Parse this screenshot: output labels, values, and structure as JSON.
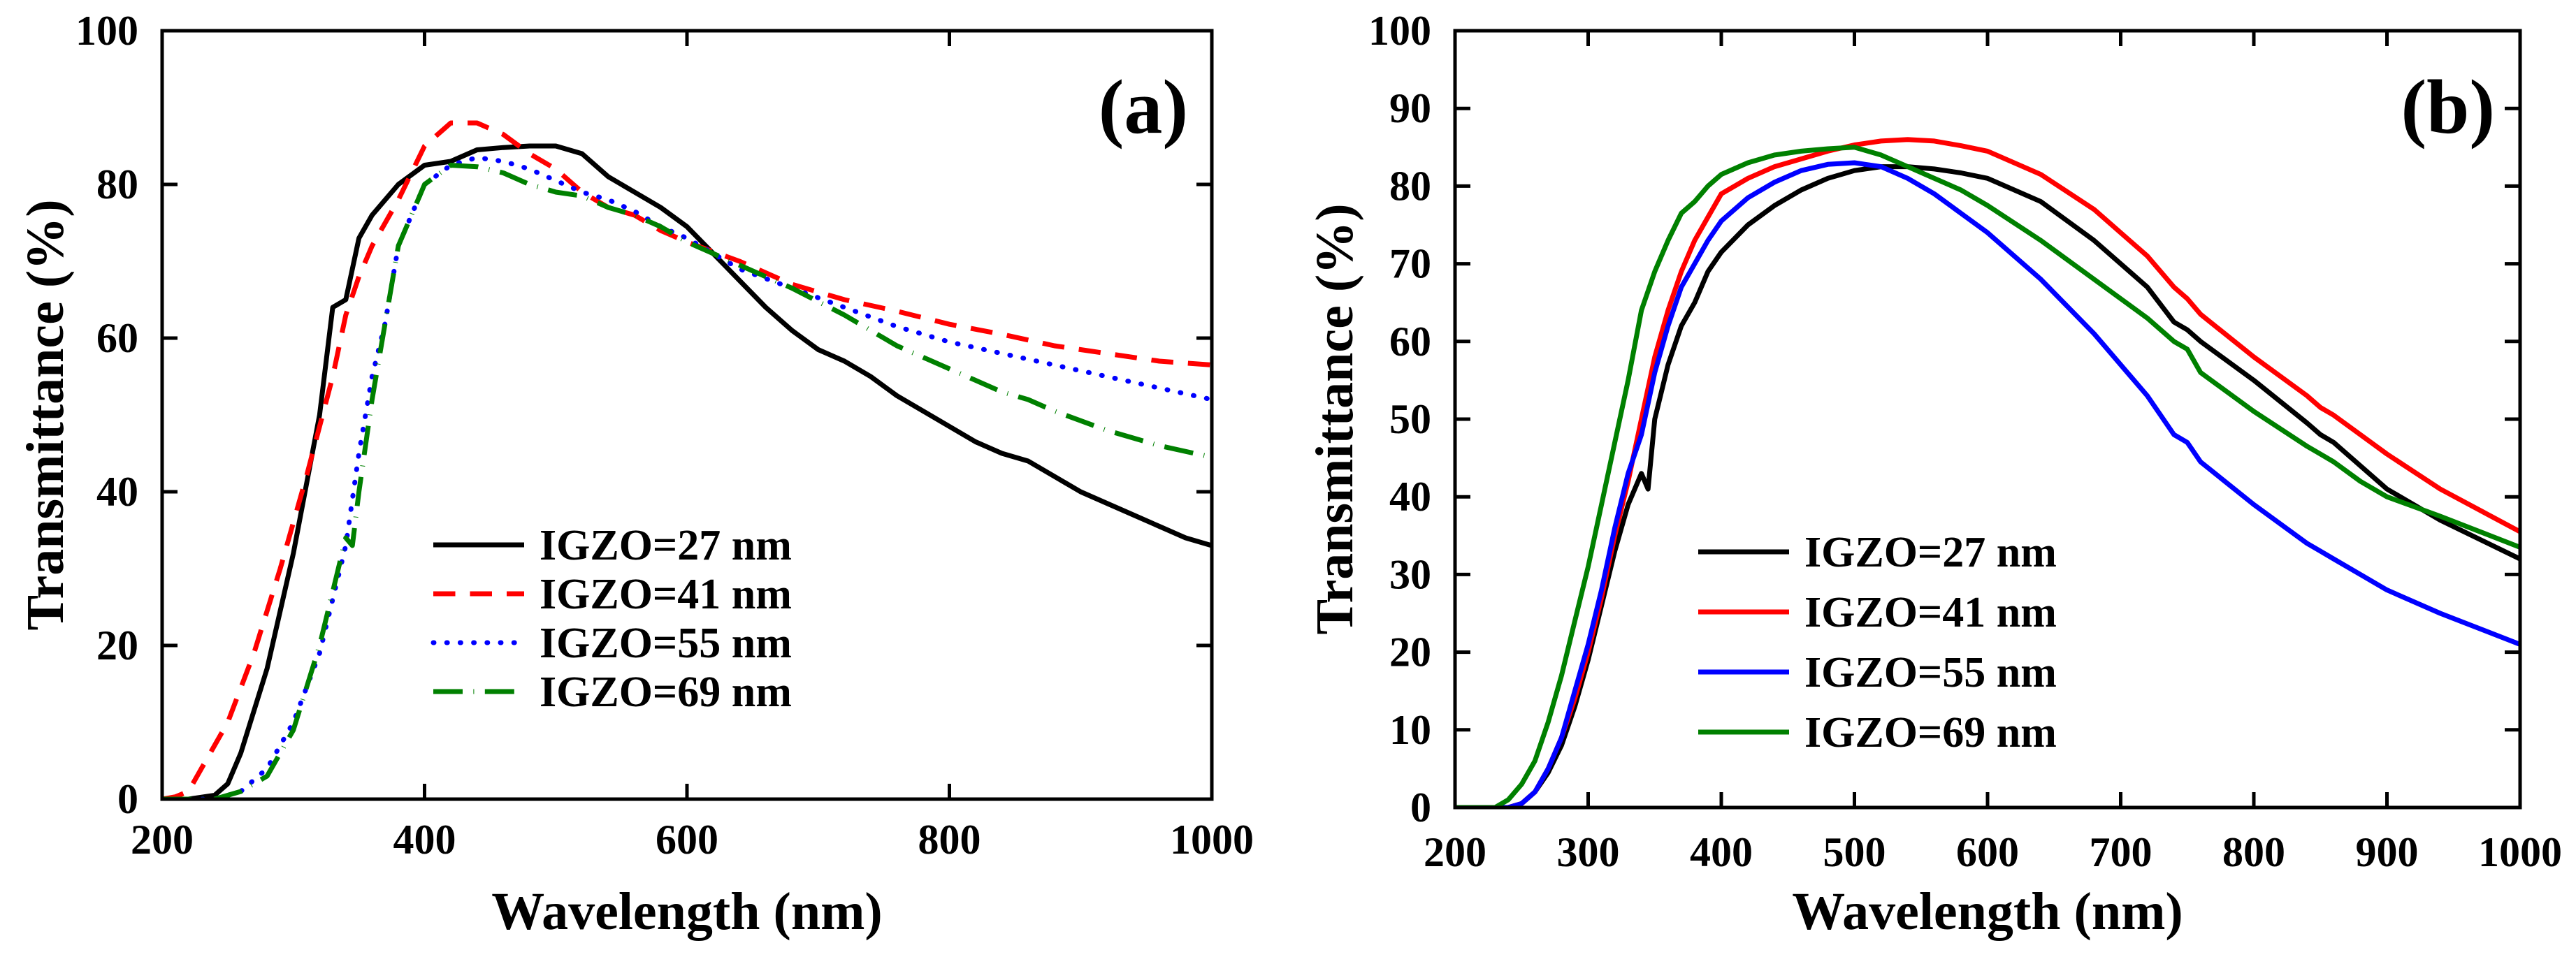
{
  "chart_data": [
    {
      "type": "line",
      "panel_label": "(a)",
      "xlabel": "Wavelength (nm)",
      "ylabel": "Transmittance (%)",
      "xlim": [
        200,
        1000
      ],
      "ylim": [
        0,
        100
      ],
      "xticks": [
        200,
        400,
        600,
        800,
        1000
      ],
      "yticks": [
        0,
        20,
        40,
        60,
        80,
        100
      ],
      "legend_position": "center",
      "series": [
        {
          "name": "IGZO=27 nm",
          "color": "#000000",
          "style": "solid",
          "x": [
            200,
            220,
            240,
            250,
            260,
            280,
            300,
            320,
            330,
            340,
            350,
            360,
            380,
            400,
            420,
            440,
            460,
            480,
            500,
            520,
            540,
            560,
            580,
            600,
            620,
            640,
            660,
            680,
            700,
            720,
            740,
            760,
            780,
            800,
            820,
            840,
            860,
            880,
            900,
            920,
            940,
            960,
            980,
            1000
          ],
          "y": [
            0,
            0,
            0.5,
            2,
            6,
            17,
            32,
            50,
            64,
            65,
            73,
            76,
            80,
            82.5,
            83,
            84.5,
            84.8,
            85,
            85,
            84,
            81,
            79,
            77,
            74.5,
            71,
            67.5,
            64,
            61,
            58.5,
            57,
            55,
            52.5,
            50.5,
            48.5,
            46.5,
            45,
            44,
            42,
            40,
            38.5,
            37,
            35.5,
            34,
            33
          ]
        },
        {
          "name": "IGZO=41 nm",
          "color": "#ff0000",
          "style": "dashed",
          "x": [
            200,
            210,
            220,
            230,
            250,
            270,
            290,
            310,
            330,
            340,
            350,
            360,
            380,
            400,
            420,
            440,
            460,
            480,
            500,
            520,
            540,
            560,
            580,
            600,
            640,
            680,
            720,
            760,
            800,
            840,
            880,
            920,
            960,
            1000
          ],
          "y": [
            0,
            0.3,
            1,
            4,
            10,
            19,
            30,
            42,
            55,
            63,
            68,
            72,
            78,
            85,
            88,
            88,
            86.5,
            84,
            82,
            79,
            77,
            76,
            74,
            72.5,
            70,
            67,
            65,
            63.5,
            61.8,
            60.5,
            59,
            58,
            57,
            56.5
          ]
        },
        {
          "name": "IGZO=55 nm",
          "color": "#0000ff",
          "style": "dotted",
          "x": [
            200,
            220,
            240,
            260,
            280,
            300,
            320,
            340,
            350,
            360,
            370,
            380,
            400,
            420,
            440,
            460,
            480,
            500,
            520,
            540,
            560,
            580,
            600,
            640,
            680,
            720,
            760,
            800,
            840,
            880,
            920,
            960,
            1000
          ],
          "y": [
            0,
            0,
            0,
            1,
            4,
            10,
            19,
            33,
            45,
            55,
            62,
            72,
            80,
            82.5,
            83.5,
            83,
            82,
            80.5,
            79,
            78,
            76.5,
            74.5,
            73,
            69,
            66.5,
            64,
            61.5,
            59.5,
            58,
            56.5,
            55,
            53.5,
            52
          ]
        },
        {
          "name": "IGZO=69 nm",
          "color": "#008000",
          "style": "dashdot",
          "x": [
            200,
            220,
            240,
            260,
            280,
            300,
            320,
            330,
            340,
            345,
            350,
            360,
            370,
            380,
            400,
            420,
            440,
            460,
            480,
            500,
            520,
            540,
            560,
            580,
            600,
            640,
            680,
            720,
            760,
            800,
            840,
            860,
            880,
            920,
            960,
            1000
          ],
          "y": [
            0,
            0,
            0,
            1,
            3,
            9,
            20,
            27,
            34,
            33,
            40,
            52,
            62,
            72,
            80,
            82.5,
            82.3,
            81.5,
            80,
            79,
            78.5,
            77,
            76,
            74.5,
            72.5,
            69.5,
            66.5,
            63,
            59,
            56,
            53,
            52,
            50.5,
            48,
            46,
            44.5
          ]
        }
      ]
    },
    {
      "type": "line",
      "panel_label": "(b)",
      "xlabel": "Wavelength (nm)",
      "ylabel": "Transmittance (%)",
      "xlim": [
        200,
        1000
      ],
      "ylim": [
        0,
        100
      ],
      "xticks": [
        200,
        300,
        400,
        500,
        600,
        700,
        800,
        900,
        1000
      ],
      "yticks": [
        0,
        10,
        20,
        30,
        40,
        50,
        60,
        70,
        80,
        90,
        100
      ],
      "legend_position": "lower-left",
      "series": [
        {
          "name": "IGZO=27 nm",
          "color": "#000000",
          "style": "solid",
          "x": [
            200,
            240,
            250,
            260,
            270,
            280,
            290,
            300,
            310,
            320,
            330,
            340,
            345,
            350,
            360,
            370,
            380,
            390,
            400,
            420,
            440,
            460,
            480,
            500,
            520,
            540,
            560,
            580,
            600,
            640,
            680,
            720,
            740,
            750,
            760,
            800,
            840,
            850,
            860,
            880,
            900,
            940,
            1000
          ],
          "y": [
            0,
            0,
            0.5,
            2,
            4.5,
            8,
            13,
            19,
            26,
            33,
            39,
            43,
            41,
            50,
            57,
            62,
            65,
            69,
            71.5,
            75,
            77.5,
            79.5,
            81,
            82,
            82.5,
            82.5,
            82.2,
            81.7,
            81,
            78,
            73,
            67,
            62.5,
            61.5,
            60,
            55,
            49.5,
            48,
            47,
            44,
            41,
            37,
            32
          ]
        },
        {
          "name": "IGZO=41 nm",
          "color": "#ff0000",
          "style": "solid",
          "x": [
            200,
            240,
            250,
            260,
            270,
            280,
            290,
            300,
            310,
            320,
            330,
            340,
            350,
            360,
            370,
            380,
            390,
            400,
            420,
            440,
            460,
            480,
            500,
            520,
            540,
            560,
            580,
            600,
            640,
            680,
            720,
            740,
            750,
            760,
            800,
            840,
            850,
            860,
            880,
            900,
            940,
            1000
          ],
          "y": [
            0,
            0,
            0.5,
            2,
            5,
            9,
            14,
            20,
            27,
            35,
            42,
            50,
            58,
            64,
            69,
            73,
            76,
            79,
            81,
            82.5,
            83.5,
            84.5,
            85.3,
            85.8,
            86,
            85.8,
            85.2,
            84.5,
            81.5,
            77,
            71,
            67,
            65.5,
            63.5,
            58,
            53,
            51.5,
            50.5,
            48,
            45.5,
            41,
            35.5
          ]
        },
        {
          "name": "IGZO=55 nm",
          "color": "#0000ff",
          "style": "solid",
          "x": [
            200,
            240,
            250,
            260,
            270,
            280,
            290,
            300,
            310,
            320,
            330,
            340,
            350,
            360,
            370,
            380,
            390,
            400,
            420,
            440,
            460,
            480,
            500,
            520,
            540,
            560,
            580,
            600,
            640,
            680,
            720,
            740,
            750,
            760,
            800,
            840,
            850,
            860,
            880,
            900,
            940,
            1000
          ],
          "y": [
            0,
            0,
            0.5,
            2,
            5,
            9,
            15,
            21,
            28,
            36,
            43,
            48,
            56,
            62,
            67,
            70,
            73,
            75.5,
            78.5,
            80.5,
            82,
            82.8,
            83,
            82.5,
            81,
            79,
            76.5,
            74,
            68,
            61,
            53,
            48,
            47,
            44.5,
            39,
            34,
            33,
            32,
            30,
            28,
            25,
            21
          ]
        },
        {
          "name": "IGZO=69 nm",
          "color": "#008000",
          "style": "solid",
          "x": [
            200,
            230,
            240,
            250,
            260,
            270,
            280,
            290,
            300,
            310,
            320,
            330,
            340,
            350,
            360,
            370,
            380,
            390,
            400,
            420,
            440,
            460,
            480,
            500,
            520,
            540,
            560,
            580,
            600,
            640,
            680,
            720,
            740,
            750,
            760,
            800,
            840,
            850,
            860,
            880,
            900,
            940,
            1000
          ],
          "y": [
            0,
            0,
            1,
            3,
            6,
            11,
            17,
            24,
            31,
            39,
            47,
            55,
            64,
            69,
            73,
            76.5,
            78,
            80,
            81.5,
            83,
            84,
            84.5,
            84.8,
            85,
            84,
            82.5,
            81,
            79.5,
            77.5,
            73,
            68,
            63,
            60,
            59,
            56,
            51,
            46.5,
            45.5,
            44.5,
            42,
            40,
            37.5,
            33.5
          ]
        }
      ]
    }
  ]
}
